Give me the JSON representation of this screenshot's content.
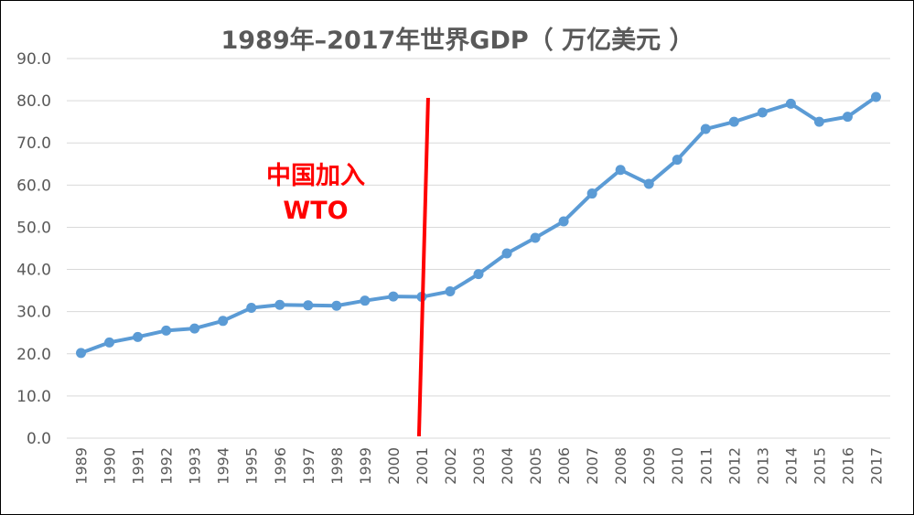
{
  "chart_data": {
    "type": "line",
    "title": "1989年–2017年世界GDP（ 万亿美元 ）",
    "xlabel": "",
    "ylabel": "",
    "ylim": [
      0,
      90
    ],
    "yticks": [
      "0.0",
      "10.0",
      "20.0",
      "30.0",
      "40.0",
      "50.0",
      "60.0",
      "70.0",
      "80.0",
      "90.0"
    ],
    "grid": true,
    "legend": "none",
    "x": [
      "1989",
      "1990",
      "1991",
      "1992",
      "1993",
      "1994",
      "1995",
      "1996",
      "1997",
      "1998",
      "1999",
      "2000",
      "2001",
      "2002",
      "2003",
      "2004",
      "2005",
      "2006",
      "2007",
      "2008",
      "2009",
      "2010",
      "2011",
      "2012",
      "2013",
      "2014",
      "2015",
      "2016",
      "2017"
    ],
    "series": [
      {
        "color": "#5b9bd5",
        "values": [
          20.2,
          22.7,
          24.0,
          25.5,
          26.0,
          27.8,
          30.9,
          31.6,
          31.5,
          31.4,
          32.6,
          33.6,
          33.5,
          34.8,
          38.9,
          43.8,
          47.5,
          51.4,
          58.0,
          63.6,
          60.3,
          66.0,
          73.3,
          75.0,
          77.2,
          79.3,
          75.0,
          76.2,
          80.9
        ]
      }
    ],
    "annotation": {
      "lines": [
        "中国加入",
        "WTO"
      ],
      "year": "2001",
      "color": "#ff0000"
    }
  }
}
